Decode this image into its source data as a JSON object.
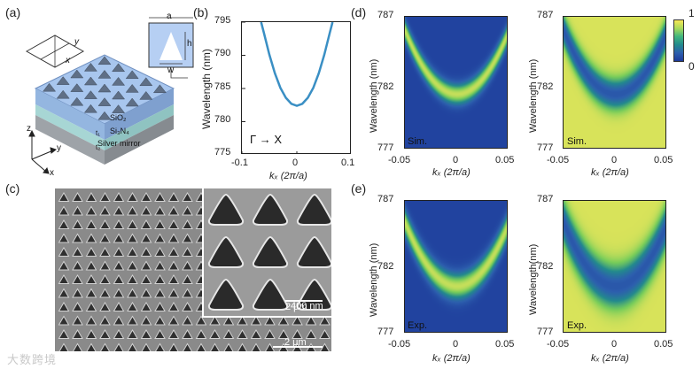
{
  "panels": {
    "a": {
      "label": "(a)",
      "unit_cell": {
        "a": "a",
        "h": "h",
        "w": "w"
      },
      "small_cell": {
        "x": "x",
        "y": "y"
      },
      "layers": [
        "SiO₂",
        "Si₃N₄",
        "Silver mirror"
      ],
      "thickness": [
        "t₁",
        "t₂"
      ],
      "axes": {
        "z": "z",
        "x": "x",
        "y": "y"
      }
    },
    "b": {
      "label": "(b)",
      "arrow_text": "Γ → X"
    },
    "c": {
      "label": "(c)",
      "scale_main": "2 μm",
      "scale_inset": "400 nm"
    },
    "d": {
      "label": "(d)",
      "tag": "Sim."
    },
    "e": {
      "label": "(e)",
      "tag": "Exp."
    },
    "colorbar": {
      "max": "1",
      "min": "0"
    }
  },
  "watermark": "大数跨境",
  "chart_data": [
    {
      "id": "b",
      "type": "line",
      "title": "",
      "xlabel": "kₓ (2π/a)",
      "ylabel": "Wavelength (nm)",
      "xlim": [
        -0.1,
        0.1
      ],
      "ylim": [
        775,
        795
      ],
      "xticks": [
        "-0.1",
        "0",
        "0.1"
      ],
      "yticks": [
        "775",
        "780",
        "785",
        "790",
        "795"
      ],
      "series": [
        {
          "name": "band",
          "color": "#3a8fc4",
          "x": [
            -0.065,
            -0.06,
            -0.05,
            -0.04,
            -0.03,
            -0.02,
            -0.01,
            0,
            0.01,
            0.02,
            0.03,
            0.04,
            0.05,
            0.06,
            0.065
          ],
          "y": [
            795,
            793.4,
            790.1,
            787.3,
            785.1,
            783.6,
            782.7,
            782.4,
            782.7,
            783.6,
            785.1,
            787.3,
            790.1,
            793.4,
            795
          ]
        }
      ]
    },
    {
      "id": "d-left",
      "type": "heatmap",
      "tag": "Sim.",
      "xlabel": "kₓ (2π/a)",
      "ylabel": "Wavelength (nm)",
      "xlim": [
        -0.05,
        0.05
      ],
      "ylim": [
        777,
        787
      ],
      "xticks": [
        "-0.05",
        "0",
        "0.05"
      ],
      "yticks": [
        "777",
        "782",
        "787"
      ],
      "band_min_nm": 781.2,
      "band_curvature": 1900,
      "band_width_nm": 0.55,
      "inverted": false
    },
    {
      "id": "d-right",
      "type": "heatmap",
      "tag": "Sim.",
      "xlabel": "kₓ (2π/a)",
      "ylabel": "Wavelength (nm)",
      "xlim": [
        -0.05,
        0.05
      ],
      "ylim": [
        777,
        787
      ],
      "xticks": [
        "-0.05",
        "0",
        "0.05"
      ],
      "yticks": [
        "777",
        "782",
        "787"
      ],
      "band_min_nm": 781.2,
      "band_curvature": 1900,
      "band_width_nm": 0.8,
      "inverted": true
    },
    {
      "id": "e-left",
      "type": "heatmap",
      "tag": "Exp.",
      "xlabel": "kₓ (2π/a)",
      "ylabel": "Wavelength (nm)",
      "xlim": [
        -0.05,
        0.05
      ],
      "ylim": [
        777,
        787
      ],
      "xticks": [
        "-0.05",
        "0",
        "0.05"
      ],
      "yticks": [
        "777",
        "782",
        "787"
      ],
      "band_min_nm": 780.6,
      "band_curvature": 1900,
      "band_width_nm": 0.7,
      "inverted": false
    },
    {
      "id": "e-right",
      "type": "heatmap",
      "tag": "Exp.",
      "xlabel": "kₓ (2π/a)",
      "ylabel": "Wavelength(nm)",
      "xlim": [
        -0.05,
        0.05
      ],
      "ylim": [
        777,
        787
      ],
      "xticks": [
        "-0.05",
        "0",
        "0.05"
      ],
      "yticks": [
        "777",
        "782",
        "787"
      ],
      "band_min_nm": 780.6,
      "band_curvature": 1900,
      "band_width_nm": 1.1,
      "inverted": true
    }
  ]
}
